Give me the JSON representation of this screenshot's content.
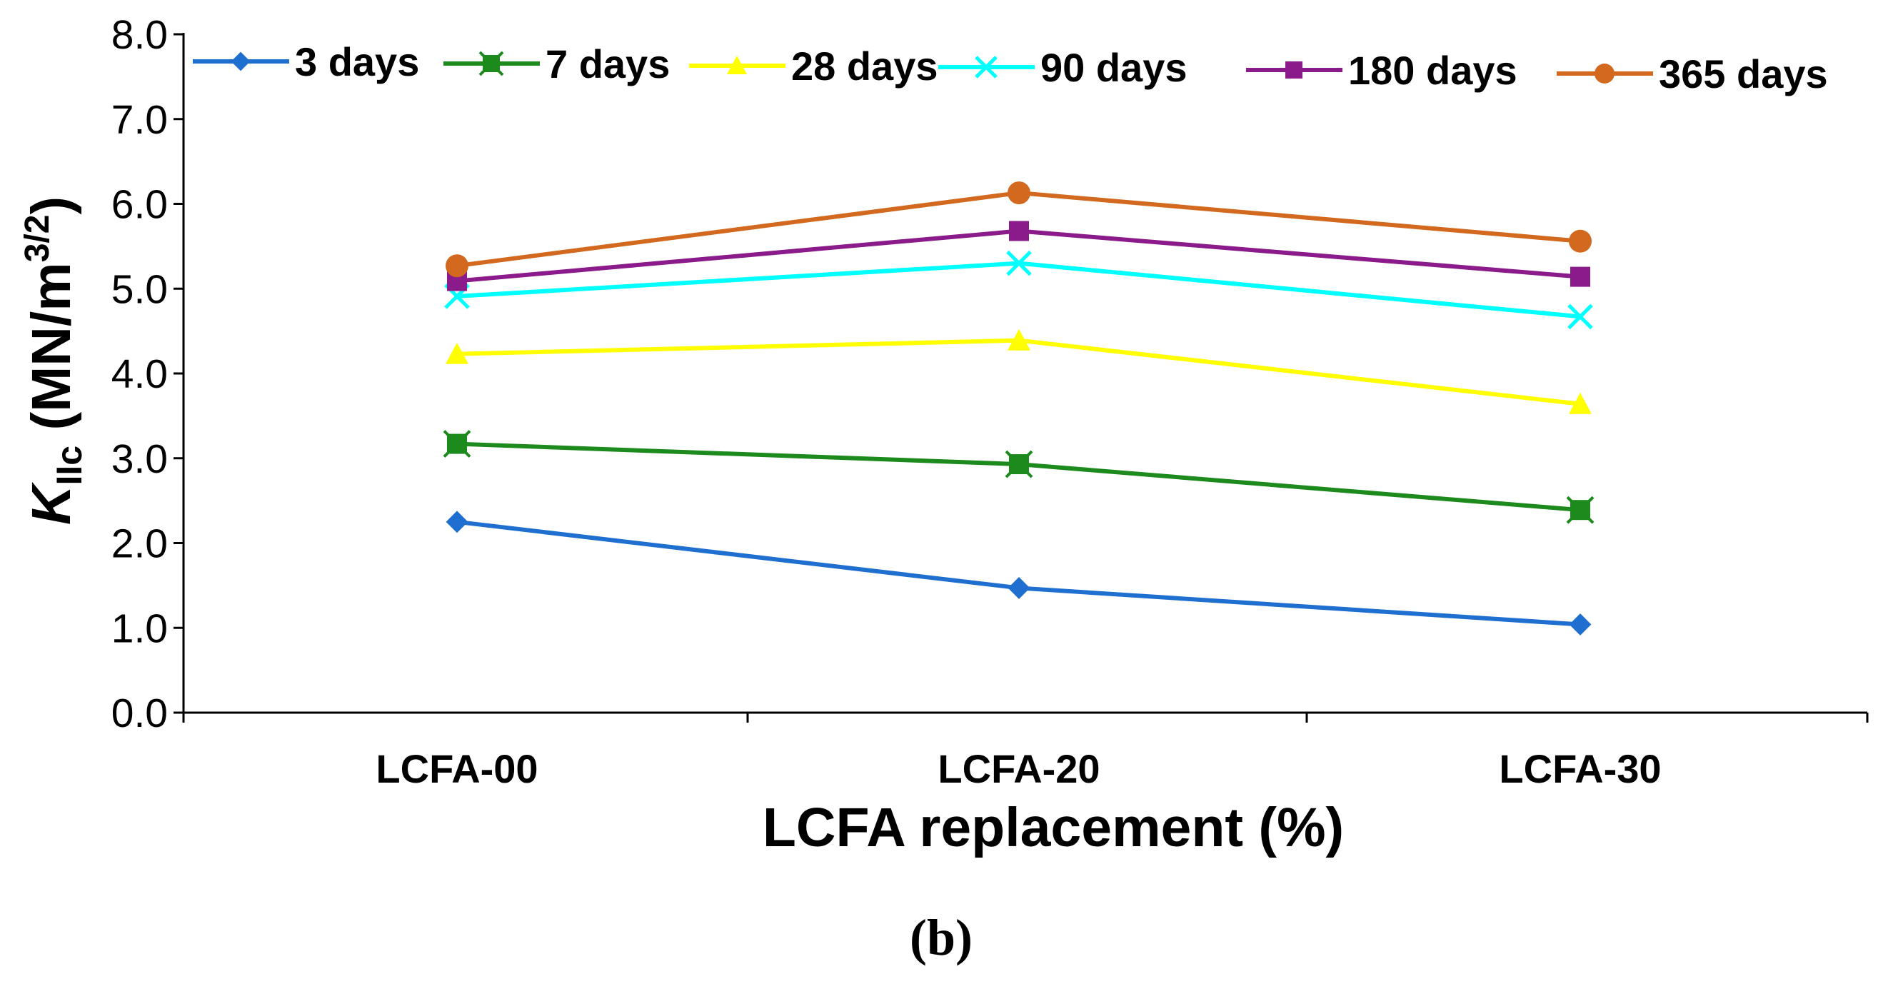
{
  "chart_data": {
    "type": "line",
    "categories": [
      "LCFA-00",
      "LCFA-20",
      "LCFA-30"
    ],
    "series": [
      {
        "name": "3 days",
        "values": [
          2.25,
          1.47,
          1.04
        ],
        "color": "#1f6fd1",
        "marker": "diamond"
      },
      {
        "name": "7 days",
        "values": [
          3.17,
          2.93,
          2.39
        ],
        "color": "#1c8a1c",
        "marker": "square-x"
      },
      {
        "name": "28 days",
        "values": [
          4.23,
          4.39,
          3.64
        ],
        "color": "#ffff00",
        "marker": "triangle"
      },
      {
        "name": "90 days",
        "values": [
          4.91,
          5.3,
          4.67
        ],
        "color": "#00ffff",
        "marker": "x"
      },
      {
        "name": "180 days",
        "values": [
          5.09,
          5.68,
          5.14
        ],
        "color": "#8b1a8b",
        "marker": "square"
      },
      {
        "name": "365 days",
        "values": [
          5.27,
          6.13,
          5.56
        ],
        "color": "#d2691e",
        "marker": "circle"
      }
    ],
    "ylim": [
      0,
      8
    ],
    "yticks": [
      "0.0",
      "1.0",
      "2.0",
      "3.0",
      "4.0",
      "5.0",
      "6.0",
      "7.0",
      "8.0"
    ],
    "xlabel": "LCFA replacement (%)",
    "ylabel_main": "K",
    "ylabel_sub": "IIc",
    "ylabel_units": " (MN/m",
    "ylabel_sup": "3/2",
    "ylabel_close": ")",
    "legend_position": "top",
    "grid": false,
    "panel_label": "(b)"
  }
}
